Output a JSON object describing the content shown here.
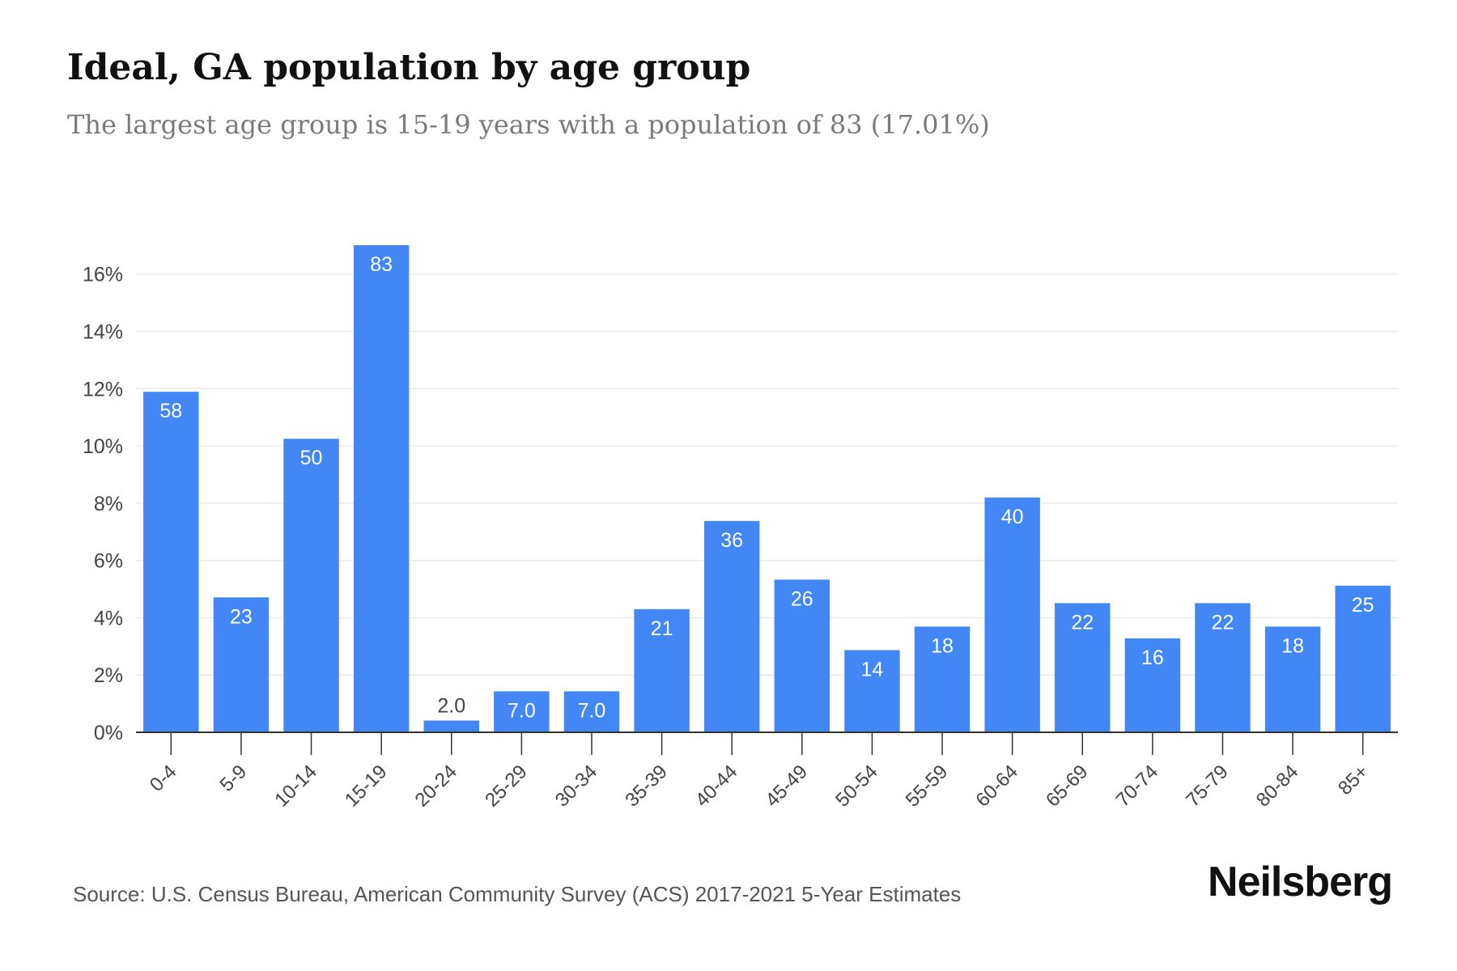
{
  "header": {
    "title": "Ideal, GA population by age group",
    "subtitle": "The largest age group is 15-19 years with a population of 83 (17.01%)"
  },
  "footer": {
    "source": "Source: U.S. Census Bureau, American Community Survey (ACS) 2017-2021 5-Year Estimates",
    "logo_text": "Neilsberg"
  },
  "colors": {
    "bar": "#4287f5",
    "bar_label": "#ffffff",
    "outside_label": "#444444",
    "grid": "#ebebeb",
    "axis": "#333333",
    "tick_text": "#444444"
  },
  "chart_data": {
    "type": "bar",
    "categories": [
      "0-4",
      "5-9",
      "10-14",
      "15-19",
      "20-24",
      "25-29",
      "30-34",
      "35-39",
      "40-44",
      "45-49",
      "50-54",
      "55-59",
      "60-64",
      "65-69",
      "70-74",
      "75-79",
      "80-84",
      "85+"
    ],
    "values": [
      11.89,
      4.71,
      10.25,
      17.01,
      0.41,
      1.43,
      1.43,
      4.3,
      7.38,
      5.33,
      2.87,
      3.69,
      8.2,
      4.51,
      3.28,
      4.51,
      3.69,
      5.12
    ],
    "data_labels": [
      "58",
      "23",
      "50",
      "83",
      "2.0",
      "7.0",
      "7.0",
      "21",
      "36",
      "26",
      "14",
      "18",
      "40",
      "22",
      "16",
      "22",
      "18",
      "25"
    ],
    "y_ticks": [
      0,
      2,
      4,
      6,
      8,
      10,
      12,
      14,
      16
    ],
    "y_tick_labels": [
      "0%",
      "2%",
      "4%",
      "6%",
      "8%",
      "10%",
      "12%",
      "14%",
      "16%"
    ],
    "ylim": [
      0,
      17.01
    ],
    "grid": true,
    "legend": "none",
    "xlabel": "",
    "ylabel": ""
  }
}
